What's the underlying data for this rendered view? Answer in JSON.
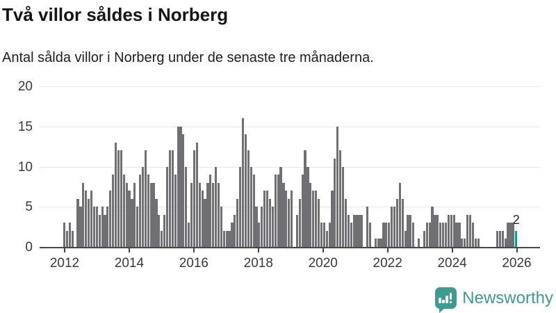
{
  "header": {
    "title": "Två villor såldes i Norberg",
    "subtitle": "Antal sålda villor i Norberg under de senaste tre månaderna."
  },
  "chart_data": {
    "type": "bar",
    "title": "Två villor såldes i Norberg",
    "xlabel": "",
    "ylabel": "",
    "x_start": "2012-01",
    "x_end": "2025-12",
    "x_ticks": [
      "2012",
      "2014",
      "2016",
      "2018",
      "2020",
      "2022",
      "2024",
      "2026"
    ],
    "y_ticks": [
      0,
      5,
      10,
      15,
      20
    ],
    "ylim": [
      0,
      20
    ],
    "grid": "horizontal",
    "values": [
      3,
      2,
      3,
      2,
      0,
      6,
      5,
      8,
      7,
      6,
      7,
      5,
      5,
      4,
      5,
      4,
      5,
      7,
      9,
      13,
      12,
      12,
      9,
      8,
      7,
      6,
      8,
      5,
      9,
      10,
      12,
      9,
      8,
      8,
      6,
      4,
      2,
      4,
      10,
      12,
      12,
      9,
      15,
      15,
      14,
      10,
      3,
      8,
      12,
      13,
      8,
      7,
      6,
      8,
      9,
      8,
      10,
      8,
      5,
      2,
      2,
      2,
      3,
      4,
      6,
      10,
      16,
      14,
      12,
      10,
      9,
      5,
      3,
      5,
      7,
      7,
      6,
      5,
      9,
      9,
      10,
      8,
      7,
      6,
      7,
      0,
      4,
      6,
      9,
      12,
      10,
      8,
      7,
      7,
      6,
      3,
      3,
      2,
      3,
      7,
      11,
      15,
      12,
      10,
      6,
      4,
      3,
      4,
      4,
      4,
      4,
      0,
      5,
      3,
      0,
      1,
      1,
      1,
      3,
      3,
      3,
      5,
      5,
      6,
      8,
      6,
      2,
      4,
      4,
      3,
      0,
      1,
      0,
      2,
      3,
      3,
      5,
      4,
      4,
      3,
      3,
      3,
      4,
      4,
      4,
      3,
      3,
      1,
      1,
      4,
      4,
      3,
      1,
      1,
      0,
      0,
      0,
      0,
      0,
      0,
      2,
      2,
      2,
      1,
      3,
      3,
      3,
      2
    ],
    "bar_color": "#6f6f74",
    "highlight_color": "#00a49c",
    "highlight_index": 167,
    "annotation": {
      "text": "2",
      "index": 167
    },
    "axis_color": "#47474a",
    "gridline_color": "#e7e7e7",
    "legend": "none"
  },
  "footer": {
    "brand": "Newsworthy",
    "brand_color": "#3d9b90",
    "logo_icon": "newsworthy-speech-bubble-bar-chart-icon"
  }
}
